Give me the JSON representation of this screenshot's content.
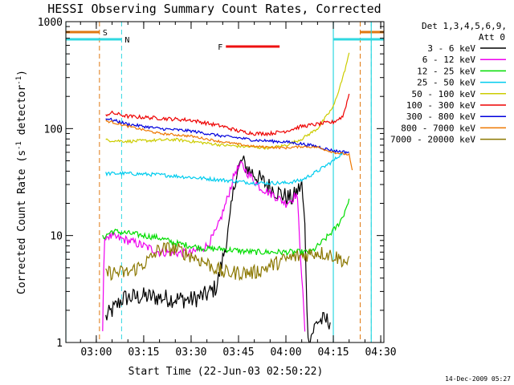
{
  "chart_data": {
    "type": "line",
    "title": "HESSI Observing Summary Count Rates, Corrected",
    "xlabel": "Start Time (22-Jun-03 02:50:22)",
    "ylabel": "Corrected Count Rate (s",
    "ylabel_sup1": "-1",
    "ylabel_mid": " detector",
    "ylabel_sup2": "-1",
    "ylabel_end": ")",
    "y_scale": "log",
    "ylim": [
      1,
      1000
    ],
    "xlim": [
      "02:50:22",
      "04:31:00"
    ],
    "x_ticks": [
      "03:00",
      "03:15",
      "03:30",
      "03:45",
      "04:00",
      "04:15",
      "04:30"
    ],
    "y_ticks": [
      "1",
      "10",
      "100",
      "1000"
    ],
    "legend_title_line1": "Det 1,3,4,5,6,9,",
    "legend_title_line2": "Att 0",
    "legend_position": "right",
    "footer": "14-Dec-2009 05:27",
    "flags": [
      {
        "label": "S",
        "color": "#e07810",
        "bars": [
          [
            "02:50:22",
            "03:01:00"
          ],
          [
            "04:23:30",
            "04:31:00"
          ]
        ],
        "lines": [
          "03:01:00",
          "04:23:30"
        ]
      },
      {
        "label": "N",
        "color": "#30d8e0",
        "bars": [
          [
            "02:50:22",
            "03:08:00"
          ],
          [
            "04:15:00",
            "04:31:00"
          ]
        ],
        "lines": [
          "03:08:00",
          "04:27:00"
        ]
      },
      {
        "label": "F",
        "color": "#ee1010",
        "bars": [
          [
            "03:41:00",
            "03:58:00"
          ]
        ],
        "lines": []
      }
    ],
    "night_lines": [
      "02:50:22",
      "04:15:00",
      "04:27:00"
    ],
    "series": [
      {
        "name": "3 - 6 keV",
        "color": "#000000",
        "noise": 0.25,
        "points": [
          [
            "03:03:00",
            1.7
          ],
          [
            "03:08:30",
            2.6
          ],
          [
            "03:15:00",
            2.7
          ],
          [
            "03:30:00",
            2.5
          ],
          [
            "03:35:00",
            2.8
          ],
          [
            "03:38:00",
            3.3
          ],
          [
            "03:40:00",
            6
          ],
          [
            "03:42:00",
            12
          ],
          [
            "03:44:00",
            35
          ],
          [
            "03:46:00",
            50
          ],
          [
            "03:48:00",
            42
          ],
          [
            "03:52:00",
            33
          ],
          [
            "03:56:00",
            27
          ],
          [
            "04:00:00",
            23
          ],
          [
            "04:02:00",
            22
          ],
          [
            "04:05:00",
            30
          ],
          [
            "04:06:00",
            12
          ],
          [
            "04:07:00",
            1
          ],
          [
            "04:10:00",
            1.6
          ],
          [
            "04:14:00",
            1.6
          ]
        ]
      },
      {
        "name": "6 - 12 keV",
        "color": "#ee00ee",
        "noise": 0.12,
        "points": [
          [
            "03:02:00",
            1.3
          ],
          [
            "03:02:30",
            8
          ],
          [
            "03:03:00",
            10
          ],
          [
            "03:10:00",
            9
          ],
          [
            "03:15:00",
            8
          ],
          [
            "03:20:00",
            7
          ],
          [
            "03:30:00",
            6.8
          ],
          [
            "03:35:00",
            8
          ],
          [
            "03:38:00",
            11
          ],
          [
            "03:41:00",
            20
          ],
          [
            "03:44:00",
            40
          ],
          [
            "03:46:00",
            46
          ],
          [
            "03:48:00",
            38
          ],
          [
            "03:52:00",
            28
          ],
          [
            "03:56:00",
            24
          ],
          [
            "04:00:00",
            20
          ],
          [
            "04:02:00",
            22
          ],
          [
            "04:03:30",
            25
          ],
          [
            "04:06:00",
            1.3
          ]
        ]
      },
      {
        "name": "12 - 25 keV",
        "color": "#00dd00",
        "noise": 0.08,
        "points": [
          [
            "03:02:00",
            9.5
          ],
          [
            "03:05:00",
            11
          ],
          [
            "03:10:00",
            10.5
          ],
          [
            "03:15:00",
            10
          ],
          [
            "03:20:00",
            9.5
          ],
          [
            "03:25:00",
            8.5
          ],
          [
            "03:30:00",
            8
          ],
          [
            "03:35:00",
            7.5
          ],
          [
            "03:40:00",
            7.5
          ],
          [
            "03:45:00",
            7.2
          ],
          [
            "03:50:00",
            7
          ],
          [
            "04:00:00",
            7
          ],
          [
            "04:08:00",
            7
          ],
          [
            "04:12:00",
            9
          ],
          [
            "04:16:00",
            12
          ],
          [
            "04:18:00",
            15
          ],
          [
            "04:20:00",
            22
          ]
        ]
      },
      {
        "name": "25 - 50 keV",
        "color": "#00ccee",
        "noise": 0.05,
        "points": [
          [
            "03:03:00",
            38
          ],
          [
            "03:10:00",
            38
          ],
          [
            "03:20:00",
            37
          ],
          [
            "03:30:00",
            35
          ],
          [
            "03:40:00",
            33
          ],
          [
            "03:50:00",
            31
          ],
          [
            "04:00:00",
            31
          ],
          [
            "04:05:00",
            33
          ],
          [
            "04:10:00",
            40
          ],
          [
            "04:15:00",
            50
          ],
          [
            "04:18:00",
            60
          ]
        ]
      },
      {
        "name": "50 - 100 keV",
        "color": "#cccc00",
        "noise": 0.04,
        "points": [
          [
            "03:03:00",
            78
          ],
          [
            "03:10:00",
            76
          ],
          [
            "03:20:00",
            78
          ],
          [
            "03:25:00",
            79
          ],
          [
            "03:35:00",
            73
          ],
          [
            "03:40:00",
            70
          ],
          [
            "03:50:00",
            67
          ],
          [
            "03:55:00",
            66
          ],
          [
            "04:00:00",
            70
          ],
          [
            "04:05:00",
            80
          ],
          [
            "04:10:00",
            100
          ],
          [
            "04:15:00",
            160
          ],
          [
            "04:18:00",
            300
          ],
          [
            "04:20:00",
            500
          ]
        ]
      },
      {
        "name": "100 - 300 keV",
        "color": "#ee0000",
        "noise": 0.05,
        "points": [
          [
            "03:03:00",
            135
          ],
          [
            "03:05:00",
            140
          ],
          [
            "03:10:00",
            130
          ],
          [
            "03:20:00",
            125
          ],
          [
            "03:30:00",
            120
          ],
          [
            "03:40:00",
            105
          ],
          [
            "03:45:00",
            95
          ],
          [
            "03:50:00",
            90
          ],
          [
            "03:55:00",
            90
          ],
          [
            "04:00:00",
            95
          ],
          [
            "04:05:00",
            105
          ],
          [
            "04:10:00",
            110
          ],
          [
            "04:15:00",
            115
          ],
          [
            "04:18:00",
            130
          ],
          [
            "04:20:00",
            210
          ]
        ]
      },
      {
        "name": "300 - 800 keV",
        "color": "#0000dd",
        "noise": 0.04,
        "points": [
          [
            "03:03:00",
            125
          ],
          [
            "03:10:00",
            110
          ],
          [
            "03:20:00",
            100
          ],
          [
            "03:30:00",
            95
          ],
          [
            "03:40:00",
            85
          ],
          [
            "03:45:00",
            82
          ],
          [
            "03:50:00",
            78
          ],
          [
            "04:00:00",
            75
          ],
          [
            "04:05:00",
            72
          ],
          [
            "04:10:00",
            68
          ],
          [
            "04:15:00",
            62
          ],
          [
            "04:20:00",
            60
          ]
        ]
      },
      {
        "name": "800 - 7000 keV",
        "color": "#ee7700",
        "noise": 0.03,
        "points": [
          [
            "03:03:00",
            118
          ],
          [
            "03:05:00",
            115
          ],
          [
            "03:10:00",
            105
          ],
          [
            "03:20:00",
            90
          ],
          [
            "03:30:00",
            85
          ],
          [
            "03:40:00",
            75
          ],
          [
            "03:50:00",
            68
          ],
          [
            "04:00:00",
            66
          ],
          [
            "04:05:00",
            68
          ],
          [
            "04:10:00",
            67
          ],
          [
            "04:15:00",
            60
          ],
          [
            "04:20:00",
            57
          ],
          [
            "04:21:00",
            40
          ]
        ]
      },
      {
        "name": "7000 - 20000 keV",
        "color": "#8b7700",
        "noise": 0.2,
        "points": [
          [
            "03:03:00",
            4.5
          ],
          [
            "03:10:00",
            4.5
          ],
          [
            "03:13:00",
            5
          ],
          [
            "03:17:00",
            6
          ],
          [
            "03:20:00",
            7.5
          ],
          [
            "03:25:00",
            7.5
          ],
          [
            "03:30:00",
            6.5
          ],
          [
            "03:35:00",
            5.5
          ],
          [
            "03:40:00",
            4.5
          ],
          [
            "03:50:00",
            4.5
          ],
          [
            "03:55:00",
            5.2
          ],
          [
            "04:00:00",
            6
          ],
          [
            "04:05:00",
            6.5
          ],
          [
            "04:10:00",
            7
          ],
          [
            "04:15:00",
            6.5
          ],
          [
            "04:20:00",
            5.5
          ]
        ]
      }
    ]
  }
}
